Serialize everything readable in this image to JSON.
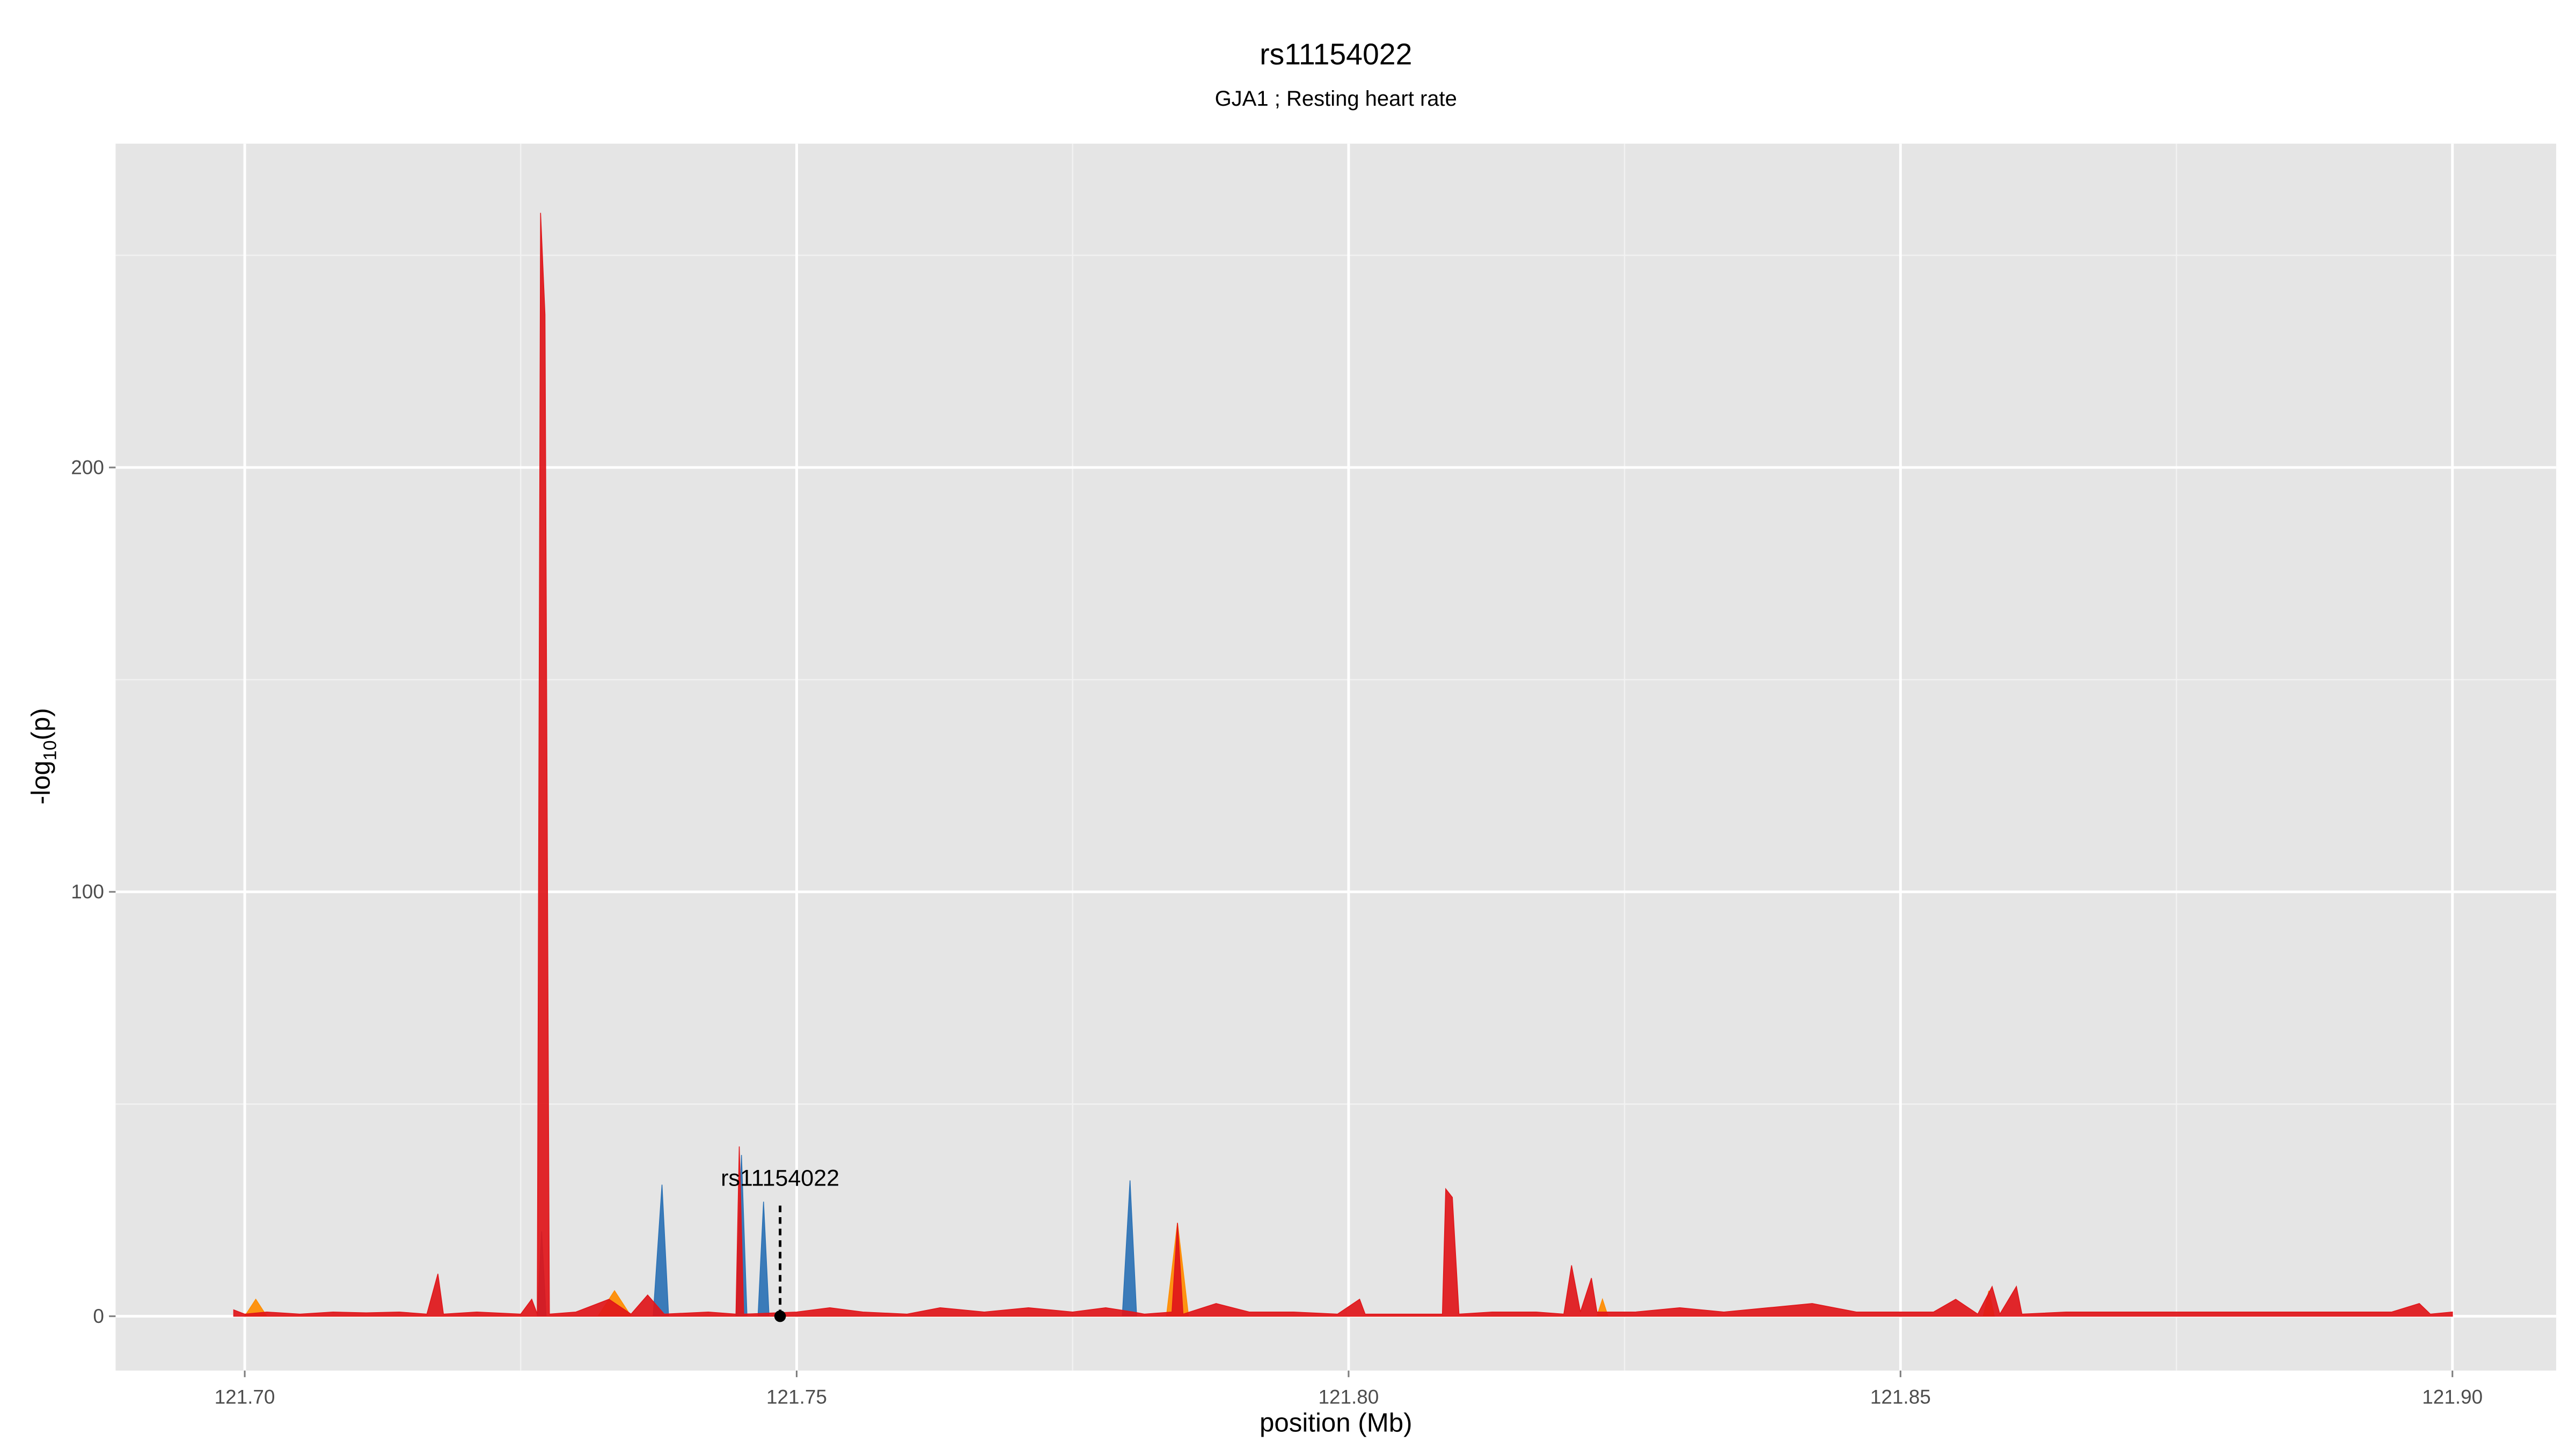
{
  "chart_data": {
    "type": "area",
    "title": "rs11154022",
    "subtitle": "GJA1 ; Resting heart rate",
    "x_label": "position (Mb)",
    "y_label": {
      "prefix": "-log",
      "sub": "10",
      "suffix": "(p)"
    },
    "xlim": [
      121.6883,
      121.9094
    ],
    "ylim": [
      -12.8,
      276.3
    ],
    "xticks": [
      {
        "value": 121.7,
        "label": "121.70"
      },
      {
        "value": 121.75,
        "label": "121.75"
      },
      {
        "value": 121.8,
        "label": "121.80"
      },
      {
        "value": 121.85,
        "label": "121.85"
      },
      {
        "value": 121.9,
        "label": "121.90"
      }
    ],
    "yticks": [
      0,
      100,
      200
    ],
    "x_minor_grid": [
      121.725,
      121.775,
      121.825,
      121.875
    ],
    "y_minor_grid": [
      50,
      150,
      250
    ],
    "grid": true,
    "panel_color": "#e5e5e5",
    "series": [
      {
        "color": "#2c72b5",
        "x": [
          121.7265,
          121.7269,
          121.7273,
          121.737,
          121.7378,
          121.7384,
          121.7445,
          121.745,
          121.7455,
          121.7465,
          121.747,
          121.7475,
          121.7795,
          121.7802,
          121.7808
        ],
        "values": [
          0,
          20,
          0,
          0,
          31,
          0,
          0,
          38,
          0,
          0,
          27,
          0,
          0,
          32,
          0
        ]
      },
      {
        "color": "#ff8c00",
        "x": [
          121.7,
          121.701,
          121.702,
          121.732,
          121.7335,
          121.735,
          121.7835,
          121.7845,
          121.7855,
          121.8225,
          121.823,
          121.8235,
          121.8575,
          121.858,
          121.8585
        ],
        "values": [
          0,
          4,
          0,
          0,
          6,
          0,
          0,
          22,
          0,
          0,
          4,
          0,
          0,
          6,
          0
        ]
      },
      {
        "color": "#e0161a",
        "x": [
          121.699,
          121.7,
          121.702,
          121.705,
          121.708,
          121.711,
          121.714,
          121.7165,
          121.7175,
          121.718,
          121.721,
          121.725,
          121.726,
          121.7265,
          121.7268,
          121.7272,
          121.7276,
          121.73,
          121.733,
          121.735,
          121.7365,
          121.738,
          121.742,
          121.7445,
          121.7448,
          121.7452,
          121.75,
          121.753,
          121.756,
          121.76,
          121.763,
          121.767,
          121.771,
          121.775,
          121.778,
          121.7805,
          121.7815,
          121.784,
          121.7845,
          121.785,
          121.788,
          121.791,
          121.795,
          121.799,
          121.801,
          121.8015,
          121.8085,
          121.8088,
          121.8094,
          121.81,
          121.813,
          121.817,
          121.8195,
          121.8202,
          121.821,
          121.822,
          121.8225,
          121.826,
          121.83,
          121.834,
          121.838,
          121.842,
          121.846,
          121.85,
          121.853,
          121.855,
          121.857,
          121.8583,
          121.859,
          121.8605,
          121.861,
          121.865,
          121.87,
          121.875,
          121.88,
          121.885,
          121.889,
          121.8945,
          121.897,
          121.898,
          121.9
        ],
        "values": [
          1.5,
          0.5,
          1,
          0.5,
          1,
          0.8,
          1,
          0.5,
          10,
          0.5,
          1,
          0.5,
          4,
          0.5,
          260,
          236,
          0.5,
          1,
          4,
          0.5,
          5,
          0.5,
          1,
          0.5,
          40,
          0.5,
          1,
          2,
          1,
          0.5,
          2,
          1,
          2,
          1,
          2,
          1,
          0.5,
          1,
          22,
          0.5,
          3,
          1,
          1,
          0.5,
          4,
          0.5,
          0.5,
          30,
          28,
          0.5,
          1,
          1,
          0.5,
          12,
          1,
          9,
          1,
          1,
          2,
          1,
          2,
          3,
          1,
          1,
          1,
          4,
          0.5,
          7,
          0.5,
          7,
          0.5,
          1,
          1,
          1,
          1,
          1,
          1,
          1,
          3,
          0.5,
          1
        ]
      }
    ],
    "annotation": {
      "text": "rs11154022",
      "x": 121.7485,
      "y": 0,
      "line_top": 27,
      "label_y": 32.7
    }
  }
}
